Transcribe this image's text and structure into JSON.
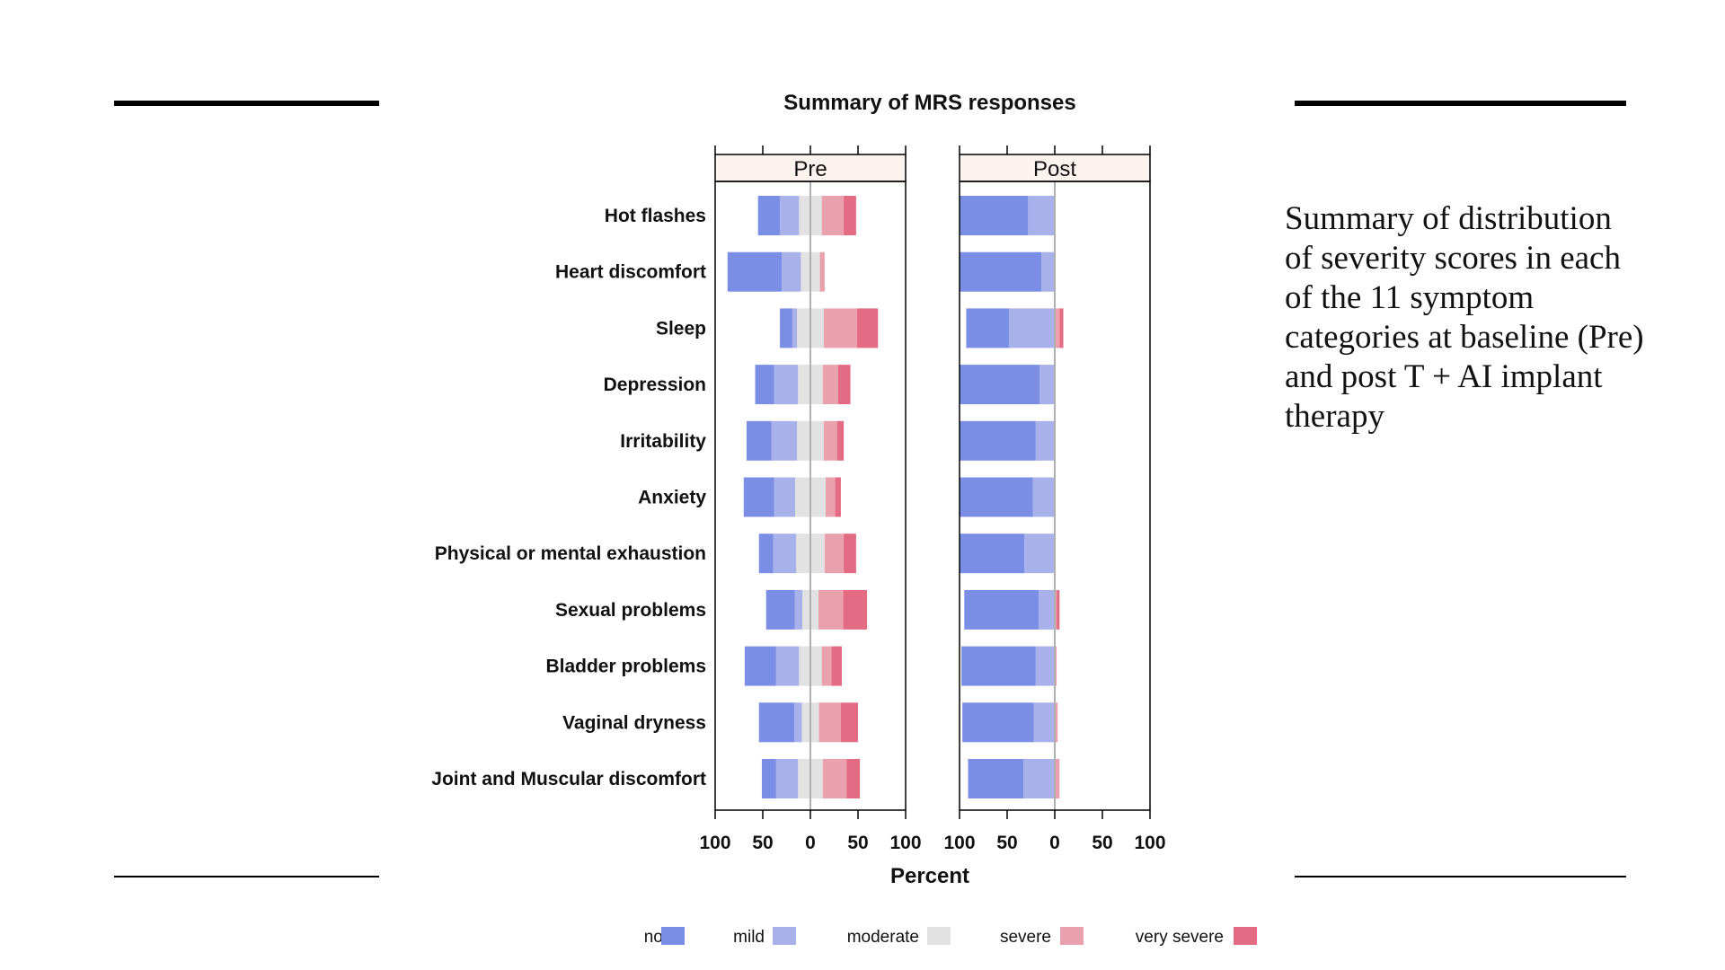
{
  "caption": "Summary of distribution of severity scores in each of the 11 symptom categories at baseline (Pre) and post T + AI implant therapy",
  "colors": {
    "none": "#7b8ee6",
    "mild": "#a8b1e9",
    "moderate": "#e2e2e2",
    "severe": "#e9a2ad",
    "very severe": "#e36b83",
    "strip": "#fdf3ee"
  },
  "chart_data": {
    "type": "diverging-stacked-bar",
    "title": "Summary of MRS responses",
    "xlabel": "Percent",
    "xlim": [
      -100,
      100
    ],
    "xtick_values": [
      -100,
      -50,
      0,
      50,
      100
    ],
    "xtick_labels": [
      "100",
      "50",
      "0",
      "50",
      "100"
    ],
    "legend": [
      "none",
      "mild",
      "moderate",
      "severe",
      "very severe"
    ],
    "legend_position": "bottom",
    "categories": [
      "Hot flashes",
      "Heart discomfort",
      "Sleep",
      "Depression",
      "Irritability",
      "Anxiety",
      "Physical or mental exhaustion",
      "Sexual problems",
      "Bladder problems",
      "Vaginal dryness",
      "Joint and Muscular discomfort"
    ],
    "panels": [
      {
        "name": "Pre",
        "rows": [
          {
            "none": 23,
            "mild": 20,
            "moderate": 24,
            "severe": 23,
            "very severe": 13
          },
          {
            "none": 57,
            "mild": 20,
            "moderate": 20,
            "severe": 5,
            "very severe": 0
          },
          {
            "none": 13,
            "mild": 5,
            "moderate": 28,
            "severe": 35,
            "very severe": 22
          },
          {
            "none": 20,
            "mild": 25,
            "moderate": 26,
            "severe": 16,
            "very severe": 13
          },
          {
            "none": 26,
            "mild": 27,
            "moderate": 28,
            "severe": 14,
            "very severe": 7
          },
          {
            "none": 32,
            "mild": 22,
            "moderate": 32,
            "severe": 10,
            "very severe": 6
          },
          {
            "none": 15,
            "mild": 24,
            "moderate": 30,
            "severe": 20,
            "very severe": 13
          },
          {
            "none": 30,
            "mild": 8,
            "moderate": 17,
            "severe": 26,
            "very severe": 25
          },
          {
            "none": 33,
            "mild": 24,
            "moderate": 24,
            "severe": 10,
            "very severe": 11
          },
          {
            "none": 37,
            "mild": 8,
            "moderate": 18,
            "severe": 23,
            "very severe": 18
          },
          {
            "none": 15,
            "mild": 23,
            "moderate": 26,
            "severe": 25,
            "very severe": 14
          }
        ]
      },
      {
        "name": "Post",
        "rows": [
          {
            "none": 72,
            "mild": 28,
            "moderate": 0,
            "severe": 0,
            "very severe": 0
          },
          {
            "none": 86,
            "mild": 14,
            "moderate": 0,
            "severe": 0,
            "very severe": 0
          },
          {
            "none": 45,
            "mild": 48,
            "moderate": 0,
            "severe": 5,
            "very severe": 4
          },
          {
            "none": 84,
            "mild": 16,
            "moderate": 0,
            "severe": 0,
            "very severe": 0
          },
          {
            "none": 80,
            "mild": 20,
            "moderate": 0,
            "severe": 0,
            "very severe": 0
          },
          {
            "none": 77,
            "mild": 23,
            "moderate": 0,
            "severe": 0,
            "very severe": 0
          },
          {
            "none": 68,
            "mild": 32,
            "moderate": 0,
            "severe": 0,
            "very severe": 0
          },
          {
            "none": 78,
            "mild": 17,
            "moderate": 0,
            "severe": 2,
            "very severe": 3
          },
          {
            "none": 78,
            "mild": 20,
            "moderate": 0,
            "severe": 2,
            "very severe": 0
          },
          {
            "none": 75,
            "mild": 22,
            "moderate": 0,
            "severe": 3,
            "very severe": 0
          },
          {
            "none": 58,
            "mild": 33,
            "moderate": 0,
            "severe": 5,
            "very severe": 0
          }
        ]
      }
    ]
  }
}
